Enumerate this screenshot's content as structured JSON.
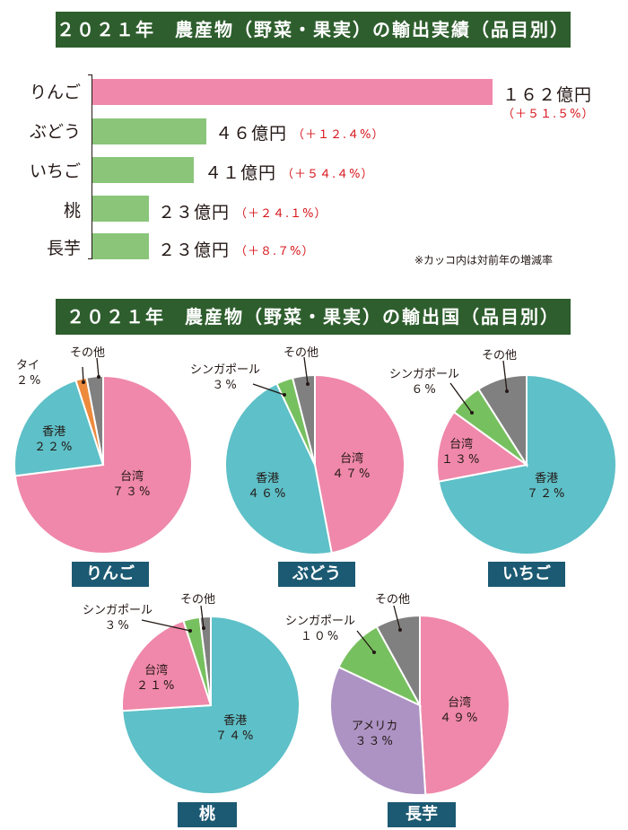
{
  "bar_section": {
    "title": "２０２１年　農産物（野菜・果実）の輸出実績（品目別）",
    "note": "※カッコ内は対前年の増減率",
    "items": [
      {
        "label": "りんご",
        "value_text": "１６２億円",
        "change_text": "（＋５１.５%）"
      },
      {
        "label": "ぶどう",
        "value_text": "４６億円",
        "change_text": "（＋１２.４%）"
      },
      {
        "label": "いちご",
        "value_text": "４１億円",
        "change_text": "（＋５４.４%）"
      },
      {
        "label": "桃",
        "value_text": "２３億円",
        "change_text": "（＋２４.１%）"
      },
      {
        "label": "長芋",
        "value_text": "２３億円",
        "change_text": "（＋８.７%）"
      }
    ]
  },
  "pie_section": {
    "title": "２０２１年　農産物（野菜・果実）の輸出国（品目別）"
  },
  "colors": {
    "banner": "#2e5e2d",
    "tag": "#1c5a73",
    "apple_bar": "#ef88aa",
    "other_bar": "#8ac57a",
    "pink": "#ef88aa",
    "teal": "#5ec0c8",
    "green": "#77c05f",
    "gray": "#808080",
    "orange": "#ed8a3c",
    "purple": "#ad93c3",
    "change_text": "#d7141a"
  },
  "chart_data": [
    {
      "type": "bar",
      "title": "２０２１年　農産物（野菜・果実）の輸出実績（品目別）",
      "categories": [
        "りんご",
        "ぶどう",
        "いちご",
        "桃",
        "長芋"
      ],
      "values": [
        162,
        46,
        41,
        23,
        23
      ],
      "unit": "億円",
      "change_percent": [
        51.5,
        12.4,
        54.4,
        24.1,
        8.7
      ],
      "orientation": "horizontal"
    },
    {
      "type": "pie",
      "title": "りんご",
      "slices": [
        {
          "label": "台湾",
          "value": 73,
          "pct_text": "７３%",
          "color": "#ef88aa"
        },
        {
          "label": "香港",
          "value": 22,
          "pct_text": "２２%",
          "color": "#5ec0c8"
        },
        {
          "label": "タイ",
          "value": 2,
          "pct_text": "２%",
          "color": "#ed8a3c"
        },
        {
          "label": "その他",
          "value": 3,
          "pct_text": "",
          "color": "#808080"
        }
      ]
    },
    {
      "type": "pie",
      "title": "ぶどう",
      "slices": [
        {
          "label": "台湾",
          "value": 47,
          "pct_text": "４７%",
          "color": "#ef88aa"
        },
        {
          "label": "香港",
          "value": 46,
          "pct_text": "４６%",
          "color": "#5ec0c8"
        },
        {
          "label": "シンガポール",
          "value": 3,
          "pct_text": "３%",
          "color": "#77c05f"
        },
        {
          "label": "その他",
          "value": 4,
          "pct_text": "",
          "color": "#808080"
        }
      ]
    },
    {
      "type": "pie",
      "title": "いちご",
      "slices": [
        {
          "label": "香港",
          "value": 72,
          "pct_text": "７２%",
          "color": "#5ec0c8"
        },
        {
          "label": "台湾",
          "value": 13,
          "pct_text": "１３%",
          "color": "#ef88aa"
        },
        {
          "label": "シンガポール",
          "value": 6,
          "pct_text": "６%",
          "color": "#77c05f"
        },
        {
          "label": "その他",
          "value": 9,
          "pct_text": "",
          "color": "#808080"
        }
      ]
    },
    {
      "type": "pie",
      "title": "桃",
      "slices": [
        {
          "label": "香港",
          "value": 74,
          "pct_text": "７４%",
          "color": "#5ec0c8"
        },
        {
          "label": "台湾",
          "value": 21,
          "pct_text": "２１%",
          "color": "#ef88aa"
        },
        {
          "label": "シンガポール",
          "value": 3,
          "pct_text": "３%",
          "color": "#77c05f"
        },
        {
          "label": "その他",
          "value": 2,
          "pct_text": "",
          "color": "#808080"
        }
      ]
    },
    {
      "type": "pie",
      "title": "長芋",
      "slices": [
        {
          "label": "台湾",
          "value": 49,
          "pct_text": "４９%",
          "color": "#ef88aa"
        },
        {
          "label": "アメリカ",
          "value": 33,
          "pct_text": "３３%",
          "color": "#ad93c3"
        },
        {
          "label": "シンガポール",
          "value": 10,
          "pct_text": "１０%",
          "color": "#77c05f"
        },
        {
          "label": "その他",
          "value": 8,
          "pct_text": "",
          "color": "#808080"
        }
      ]
    }
  ]
}
